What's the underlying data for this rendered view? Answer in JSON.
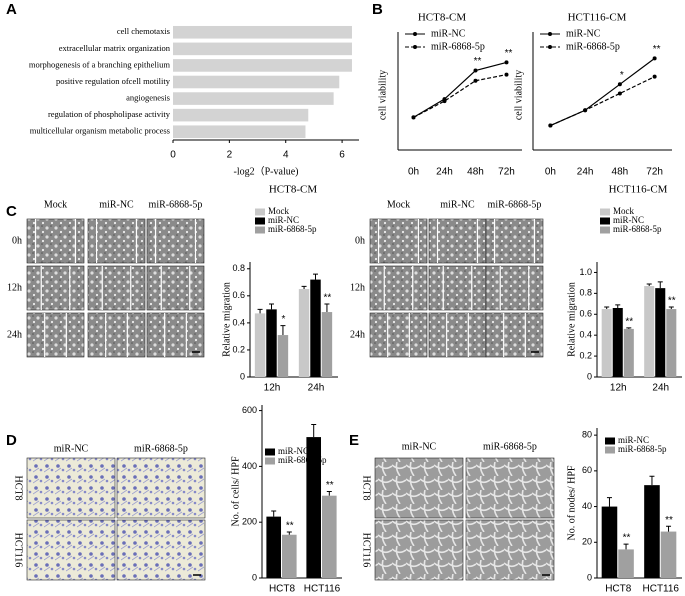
{
  "figure": {
    "panel_labels": [
      "A",
      "B",
      "C",
      "D",
      "E"
    ],
    "image_panels": [
      {
        "columns": [
          "Mock",
          "miR-NC",
          "miR-6868-5p"
        ],
        "rows": [
          "0h",
          "12h",
          "24h"
        ]
      },
      {
        "columns": [
          "Mock",
          "miR-NC",
          "miR-6868-5p"
        ],
        "rows": [
          "0h",
          "12h",
          "24h"
        ]
      },
      {
        "columns": [
          "miR-NC",
          "miR-6868-5p"
        ],
        "rows": [
          "HCT8",
          "HCT116"
        ]
      },
      {
        "columns": [
          "miR-NC",
          "miR-6868-5p"
        ],
        "rows": [
          "HCT8",
          "HCT116"
        ]
      }
    ]
  },
  "chart_data": [
    {
      "type": "hbar",
      "xlabel": "-log2（P-value)",
      "categories": [
        "cell chemotaxis",
        "extracellular matrix organization",
        "morphogenesis of a branching epithelium",
        "positive regulation ofcell motility",
        "angiogenesis",
        "regulation of phospholipase activity",
        "multicellular organism metabolic process"
      ],
      "values": [
        6.35,
        6.35,
        6.35,
        5.9,
        5.7,
        4.8,
        4.7
      ],
      "color": "#d3d3d3",
      "xlim": [
        0,
        6.6
      ],
      "xticks": [
        0,
        2,
        4,
        6
      ]
    },
    {
      "type": "line",
      "title": "HCT8-CM",
      "ylabel": "cell viability",
      "categories": [
        "0h",
        "24h",
        "48h",
        "72h"
      ],
      "ylim": [
        0.2,
        2.9
      ],
      "series": [
        {
          "name": "miR-NC",
          "color": "#000",
          "line_style": "solid",
          "values": [
            1,
            1.45,
            2.15,
            2.35
          ],
          "annotations": [
            null,
            null,
            "**",
            "**"
          ]
        },
        {
          "name": "miR-6868-5p",
          "color": "#000",
          "line_style": "dashed",
          "values": [
            1,
            1.4,
            1.9,
            2.05
          ]
        }
      ]
    },
    {
      "type": "line",
      "title": "HCT116-CM",
      "ylabel": "cell viability",
      "categories": [
        "0h",
        "24h",
        "48h",
        "72h"
      ],
      "ylim": [
        0.2,
        3.8
      ],
      "series": [
        {
          "name": "miR-NC",
          "color": "#000",
          "line_style": "solid",
          "values": [
            1,
            1.5,
            2.35,
            3.2
          ],
          "annotations": [
            null,
            null,
            "*",
            "**"
          ]
        },
        {
          "name": "miR-6868-5p",
          "color": "#000",
          "line_style": "dashed",
          "values": [
            1,
            1.5,
            2.05,
            2.6
          ]
        }
      ]
    },
    {
      "type": "bar",
      "title": "HCT8-CM",
      "ylabel": "Relative migration",
      "categories": [
        "12h",
        "24h"
      ],
      "ylim": [
        0,
        0.85
      ],
      "yticks": [
        0,
        0.2,
        0.4,
        0.6,
        0.8
      ],
      "series": [
        {
          "name": "Mock",
          "color": "#c8c8c8",
          "values": [
            0.47,
            0.65
          ],
          "errors": [
            0.03,
            0.02
          ]
        },
        {
          "name": "miR-NC",
          "color": "#000",
          "values": [
            0.5,
            0.72
          ],
          "errors": [
            0.04,
            0.04
          ]
        },
        {
          "name": "miR-6868-5p",
          "color": "#a0a0a0",
          "values": [
            0.31,
            0.48
          ],
          "errors": [
            0.07,
            0.06
          ],
          "annotations": [
            "*",
            "**"
          ]
        }
      ]
    },
    {
      "type": "bar",
      "title": "HCT116-CM",
      "ylabel": "Relative migration",
      "categories": [
        "12h",
        "24h"
      ],
      "ylim": [
        0,
        1.1
      ],
      "yticks": [
        0,
        0.2,
        0.4,
        0.6,
        0.8,
        {
          "value": 1,
          "label": "1.0"
        }
      ],
      "series": [
        {
          "name": "Mock",
          "color": "#c8c8c8",
          "values": [
            0.65,
            0.87
          ],
          "errors": [
            0.02,
            0.02
          ]
        },
        {
          "name": "miR-NC",
          "color": "#000",
          "values": [
            0.66,
            0.85
          ],
          "errors": [
            0.03,
            0.06
          ]
        },
        {
          "name": "miR-6868-5p",
          "color": "#a0a0a0",
          "values": [
            0.46,
            0.65
          ],
          "errors": [
            0.01,
            0.02
          ],
          "annotations": [
            "**",
            "**"
          ]
        }
      ]
    },
    {
      "type": "bar",
      "ylabel": "No. of cells/ HPF",
      "categories": [
        "HCT8",
        "HCT116"
      ],
      "ylim": [
        0,
        620
      ],
      "yticks": [
        0,
        200,
        400,
        600
      ],
      "series": [
        {
          "name": "miR-NC",
          "color": "#000",
          "values": [
            220,
            505
          ],
          "errors": [
            20,
            45
          ]
        },
        {
          "name": "miR-6868-5p",
          "color": "#a0a0a0",
          "values": [
            155,
            295
          ],
          "errors": [
            10,
            15
          ],
          "annotations": [
            "**",
            "**"
          ]
        }
      ]
    },
    {
      "type": "bar",
      "ylabel": "No. of nodes/ HPF",
      "categories": [
        "HCT8",
        "HCT116"
      ],
      "ylim": [
        0,
        84
      ],
      "yticks": [
        0,
        20,
        40,
        60,
        80
      ],
      "series": [
        {
          "name": "miR-NC",
          "color": "#000",
          "values": [
            40,
            52
          ],
          "errors": [
            5,
            5
          ]
        },
        {
          "name": "miR-6868-5p",
          "color": "#a0a0a0",
          "values": [
            16,
            26
          ],
          "errors": [
            3,
            3
          ],
          "annotations": [
            "**",
            "**"
          ]
        }
      ]
    }
  ]
}
